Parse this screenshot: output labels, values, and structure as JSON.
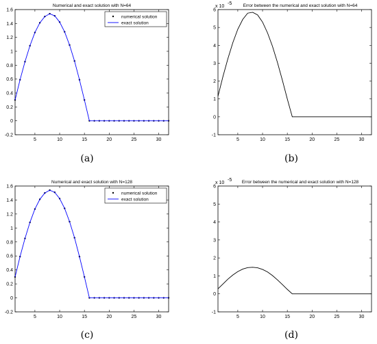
{
  "chart_data": [
    {
      "type": "line",
      "caption": "(a)",
      "title": "Numerical and exact solution with N=64",
      "xlim": [
        1,
        32
      ],
      "ylim": [
        -0.2,
        1.6
      ],
      "xticks": [
        5,
        10,
        15,
        20,
        25,
        30
      ],
      "yticks": [
        -0.2,
        0,
        0.2,
        0.4,
        0.6,
        0.8,
        1,
        1.2,
        1.4,
        1.6
      ],
      "legend_position": "top-right",
      "series": [
        {
          "name": "numerical solution",
          "style": "markers",
          "color": "#000000",
          "x": [
            1,
            2,
            3,
            4,
            5,
            6,
            7,
            8,
            9,
            10,
            11,
            12,
            13,
            14,
            15,
            16,
            17,
            18,
            19,
            20,
            21,
            22,
            23,
            24,
            25,
            26,
            27,
            28,
            29,
            30,
            31,
            32
          ],
          "y": [
            0.3,
            0.59,
            0.85,
            1.08,
            1.27,
            1.41,
            1.5,
            1.54,
            1.51,
            1.42,
            1.28,
            1.09,
            0.86,
            0.59,
            0.3,
            0.0,
            0,
            0,
            0,
            0,
            0,
            0,
            0,
            0,
            0,
            0,
            0,
            0,
            0,
            0,
            0,
            0
          ]
        },
        {
          "name": "exact solution",
          "style": "line",
          "color": "#0000ff",
          "x": [
            1,
            2,
            3,
            4,
            5,
            6,
            7,
            8,
            9,
            10,
            11,
            12,
            13,
            14,
            15,
            16,
            17,
            18,
            19,
            20,
            21,
            22,
            23,
            24,
            25,
            26,
            27,
            28,
            29,
            30,
            31,
            32
          ],
          "y": [
            0.3,
            0.59,
            0.85,
            1.08,
            1.27,
            1.41,
            1.5,
            1.54,
            1.51,
            1.42,
            1.28,
            1.09,
            0.86,
            0.59,
            0.3,
            0.0,
            0,
            0,
            0,
            0,
            0,
            0,
            0,
            0,
            0,
            0,
            0,
            0,
            0,
            0,
            0,
            0
          ]
        }
      ]
    },
    {
      "type": "line",
      "caption": "(b)",
      "title": "Error between the numerical and exact solution with N=64",
      "exponent_base": "x 10",
      "exponent_power": "-5",
      "xlim": [
        1,
        32
      ],
      "ylim": [
        -1,
        6
      ],
      "xticks": [
        5,
        10,
        15,
        20,
        25,
        30
      ],
      "yticks": [
        -1,
        0,
        1,
        2,
        3,
        4,
        5,
        6
      ],
      "series": [
        {
          "style": "line",
          "color": "#000000",
          "x": [
            1,
            2,
            3,
            4,
            5,
            6,
            7,
            8,
            9,
            10,
            11,
            12,
            13,
            14,
            15,
            16,
            17,
            18,
            19,
            20,
            21,
            22,
            23,
            24,
            25,
            26,
            27,
            28,
            29,
            30,
            31,
            32
          ],
          "y": [
            1.15,
            2.25,
            3.25,
            4.15,
            4.9,
            5.45,
            5.8,
            5.85,
            5.7,
            5.3,
            4.7,
            3.95,
            3.05,
            2.05,
            1.0,
            0,
            0,
            0,
            0,
            0,
            0,
            0,
            0,
            0,
            0,
            0,
            0,
            0,
            0,
            0,
            0,
            0
          ]
        }
      ]
    },
    {
      "type": "line",
      "caption": "(c)",
      "title": "Numerical and exact solution with N=128",
      "xlim": [
        1,
        32
      ],
      "ylim": [
        -0.2,
        1.6
      ],
      "xticks": [
        5,
        10,
        15,
        20,
        25,
        30
      ],
      "yticks": [
        -0.2,
        0,
        0.2,
        0.4,
        0.6,
        0.8,
        1,
        1.2,
        1.4,
        1.6
      ],
      "legend_position": "top-right",
      "series": [
        {
          "name": "numerical solution",
          "style": "markers",
          "color": "#000000",
          "x": [
            1,
            2,
            3,
            4,
            5,
            6,
            7,
            8,
            9,
            10,
            11,
            12,
            13,
            14,
            15,
            16,
            17,
            18,
            19,
            20,
            21,
            22,
            23,
            24,
            25,
            26,
            27,
            28,
            29,
            30,
            31,
            32
          ],
          "y": [
            0.3,
            0.59,
            0.85,
            1.08,
            1.27,
            1.41,
            1.5,
            1.54,
            1.51,
            1.42,
            1.28,
            1.09,
            0.86,
            0.59,
            0.3,
            0.0,
            0,
            0,
            0,
            0,
            0,
            0,
            0,
            0,
            0,
            0,
            0,
            0,
            0,
            0,
            0,
            0
          ]
        },
        {
          "name": "exact solution",
          "style": "line",
          "color": "#0000ff",
          "x": [
            1,
            2,
            3,
            4,
            5,
            6,
            7,
            8,
            9,
            10,
            11,
            12,
            13,
            14,
            15,
            16,
            17,
            18,
            19,
            20,
            21,
            22,
            23,
            24,
            25,
            26,
            27,
            28,
            29,
            30,
            31,
            32
          ],
          "y": [
            0.3,
            0.59,
            0.85,
            1.08,
            1.27,
            1.41,
            1.5,
            1.54,
            1.51,
            1.42,
            1.28,
            1.09,
            0.86,
            0.59,
            0.3,
            0.0,
            0,
            0,
            0,
            0,
            0,
            0,
            0,
            0,
            0,
            0,
            0,
            0,
            0,
            0,
            0,
            0
          ]
        }
      ]
    },
    {
      "type": "line",
      "caption": "(d)",
      "title": "Error between the numerical and exact solution with N=128",
      "exponent_base": "x 10",
      "exponent_power": "-5",
      "xlim": [
        1,
        32
      ],
      "ylim": [
        -1,
        6
      ],
      "xticks": [
        5,
        10,
        15,
        20,
        25,
        30
      ],
      "yticks": [
        -1,
        0,
        1,
        2,
        3,
        4,
        5,
        6
      ],
      "series": [
        {
          "style": "line",
          "color": "#000000",
          "x": [
            1,
            2,
            3,
            4,
            5,
            6,
            7,
            8,
            9,
            10,
            11,
            12,
            13,
            14,
            15,
            16,
            17,
            18,
            19,
            20,
            21,
            22,
            23,
            24,
            25,
            26,
            27,
            28,
            29,
            30,
            31,
            32
          ],
          "y": [
            0.28,
            0.55,
            0.82,
            1.05,
            1.24,
            1.38,
            1.46,
            1.48,
            1.45,
            1.36,
            1.22,
            1.02,
            0.78,
            0.52,
            0.25,
            0,
            0,
            0,
            0,
            0,
            0,
            0,
            0,
            0,
            0,
            0,
            0,
            0,
            0,
            0,
            0,
            0
          ]
        }
      ]
    }
  ]
}
